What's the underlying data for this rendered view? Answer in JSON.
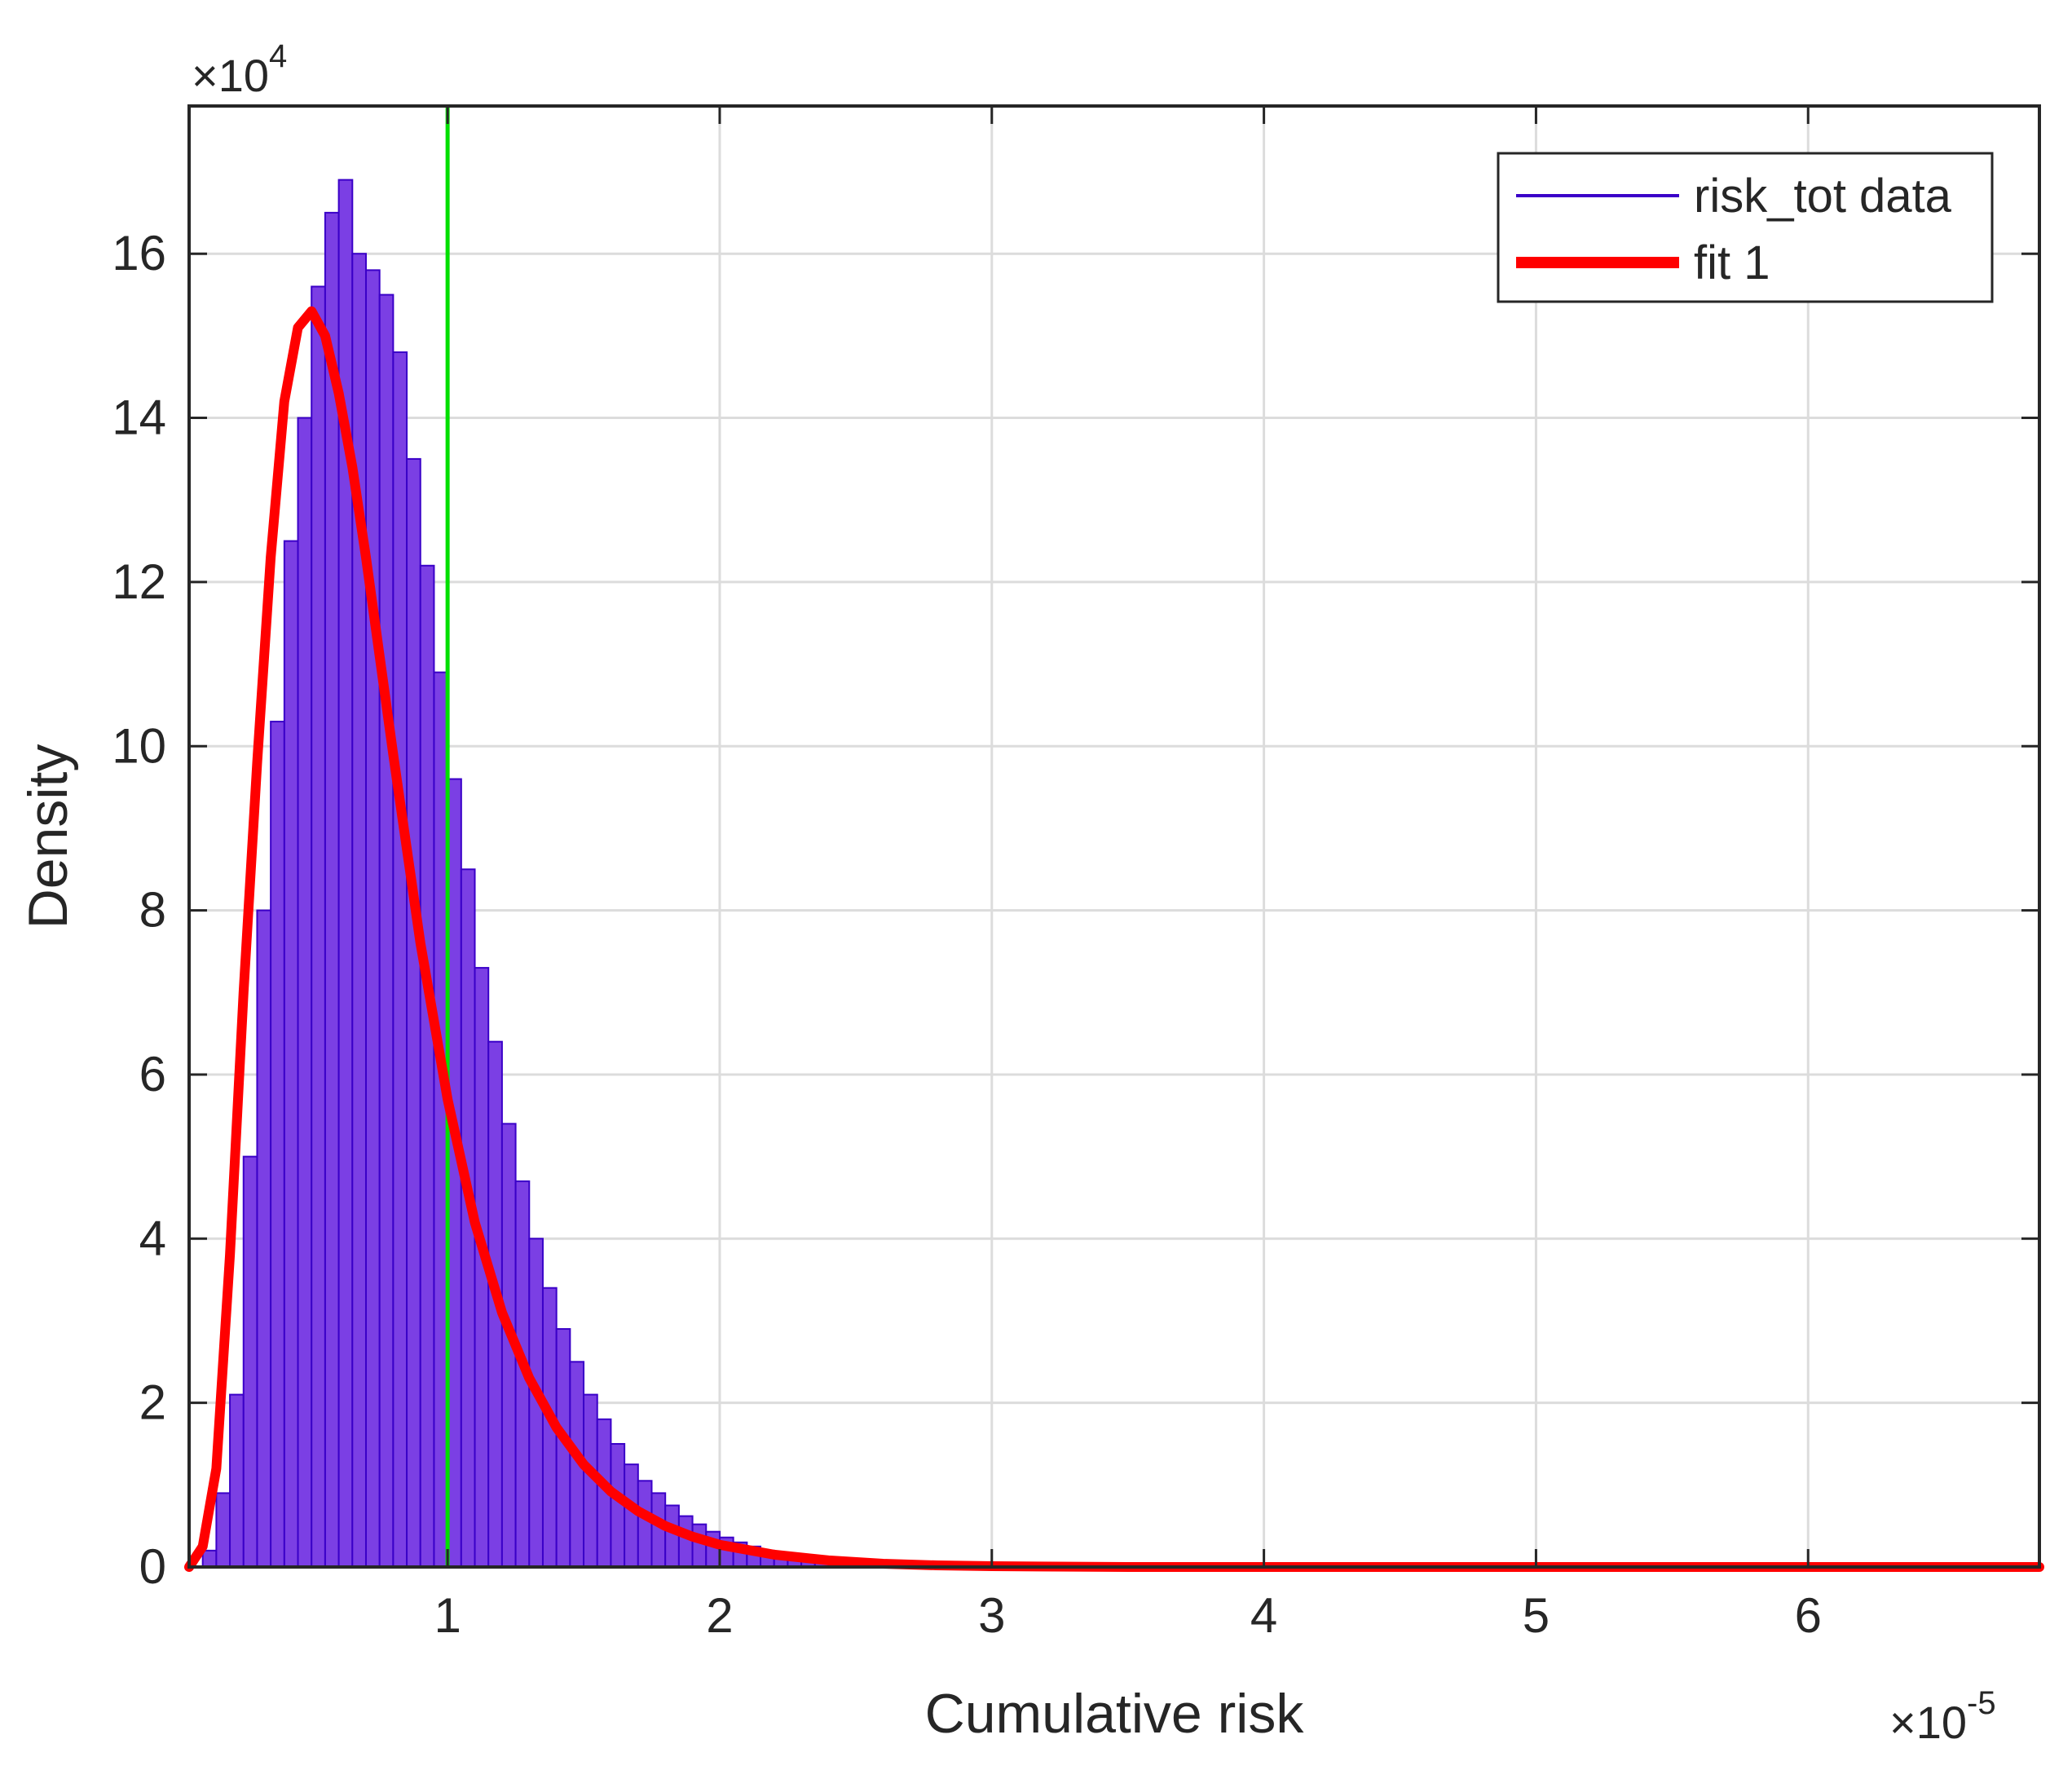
{
  "chart_data": {
    "type": "bar",
    "xlabel": "Cumulative risk",
    "ylabel": "Density",
    "x_exponent_label": "×10",
    "x_exponent": "-5",
    "y_exponent_label": "×10",
    "y_exponent": "4",
    "xlim": [
      0.05,
      6.85
    ],
    "ylim": [
      0,
      17.8
    ],
    "x_ticks": [
      1,
      2,
      3,
      4,
      5,
      6
    ],
    "x_tick_labels": [
      "1",
      "2",
      "3",
      "4",
      "5",
      "6"
    ],
    "y_ticks": [
      0,
      2,
      4,
      6,
      8,
      10,
      12,
      14,
      16
    ],
    "y_tick_labels": [
      "0",
      "2",
      "4",
      "6",
      "8",
      "10",
      "12",
      "14",
      "16"
    ],
    "grid": true,
    "legend_position": "top-right",
    "histogram": {
      "name": "risk_tot data",
      "color": "#7b3fe4",
      "edge_color": "#3a00c8",
      "bin_width": 0.05,
      "bin_starts": [
        0.1,
        0.15,
        0.2,
        0.25,
        0.3,
        0.35,
        0.4,
        0.45,
        0.5,
        0.55,
        0.6,
        0.65,
        0.7,
        0.75,
        0.8,
        0.85,
        0.9,
        0.95,
        1.0,
        1.05,
        1.1,
        1.15,
        1.2,
        1.25,
        1.3,
        1.35,
        1.4,
        1.45,
        1.5,
        1.55,
        1.6,
        1.65,
        1.7,
        1.75,
        1.8,
        1.85,
        1.9,
        1.95,
        2.0,
        2.05,
        2.1,
        2.15,
        2.2,
        2.25,
        2.3,
        2.35,
        2.4,
        2.45,
        2.5,
        2.55,
        2.6,
        2.65,
        2.7,
        2.75,
        2.8,
        2.85,
        2.9
      ],
      "values": [
        0.2,
        0.9,
        2.1,
        5.0,
        8.0,
        10.3,
        12.5,
        14.0,
        15.6,
        16.5,
        16.9,
        16.0,
        15.8,
        15.5,
        14.8,
        13.5,
        12.2,
        10.9,
        9.6,
        8.5,
        7.3,
        6.4,
        5.4,
        4.7,
        4.0,
        3.4,
        2.9,
        2.5,
        2.1,
        1.8,
        1.5,
        1.25,
        1.05,
        0.9,
        0.75,
        0.62,
        0.52,
        0.43,
        0.36,
        0.3,
        0.25,
        0.2,
        0.17,
        0.14,
        0.12,
        0.1,
        0.08,
        0.07,
        0.06,
        0.05,
        0.04,
        0.03,
        0.03,
        0.02,
        0.02,
        0.01,
        0.01
      ]
    },
    "fit": {
      "name": "fit 1",
      "color": "#ff0000",
      "x": [
        0.05,
        0.1,
        0.15,
        0.2,
        0.25,
        0.3,
        0.35,
        0.4,
        0.45,
        0.5,
        0.55,
        0.6,
        0.65,
        0.7,
        0.75,
        0.8,
        0.9,
        1.0,
        1.1,
        1.2,
        1.3,
        1.4,
        1.5,
        1.6,
        1.7,
        1.8,
        1.9,
        2.0,
        2.2,
        2.4,
        2.6,
        2.8,
        3.0,
        3.5,
        4.0,
        4.5,
        5.0,
        5.5,
        6.0,
        6.5,
        6.85
      ],
      "y": [
        0,
        0.25,
        1.2,
        3.8,
        7.0,
        9.8,
        12.3,
        14.2,
        15.1,
        15.3,
        15.0,
        14.3,
        13.4,
        12.3,
        11.1,
        9.9,
        7.6,
        5.7,
        4.2,
        3.1,
        2.3,
        1.7,
        1.25,
        0.92,
        0.68,
        0.5,
        0.37,
        0.27,
        0.15,
        0.08,
        0.04,
        0.02,
        0.01,
        0,
        0,
        0,
        0,
        0,
        0,
        0,
        0
      ]
    },
    "threshold_line": {
      "x": 1.0,
      "color": "#00e000"
    }
  }
}
